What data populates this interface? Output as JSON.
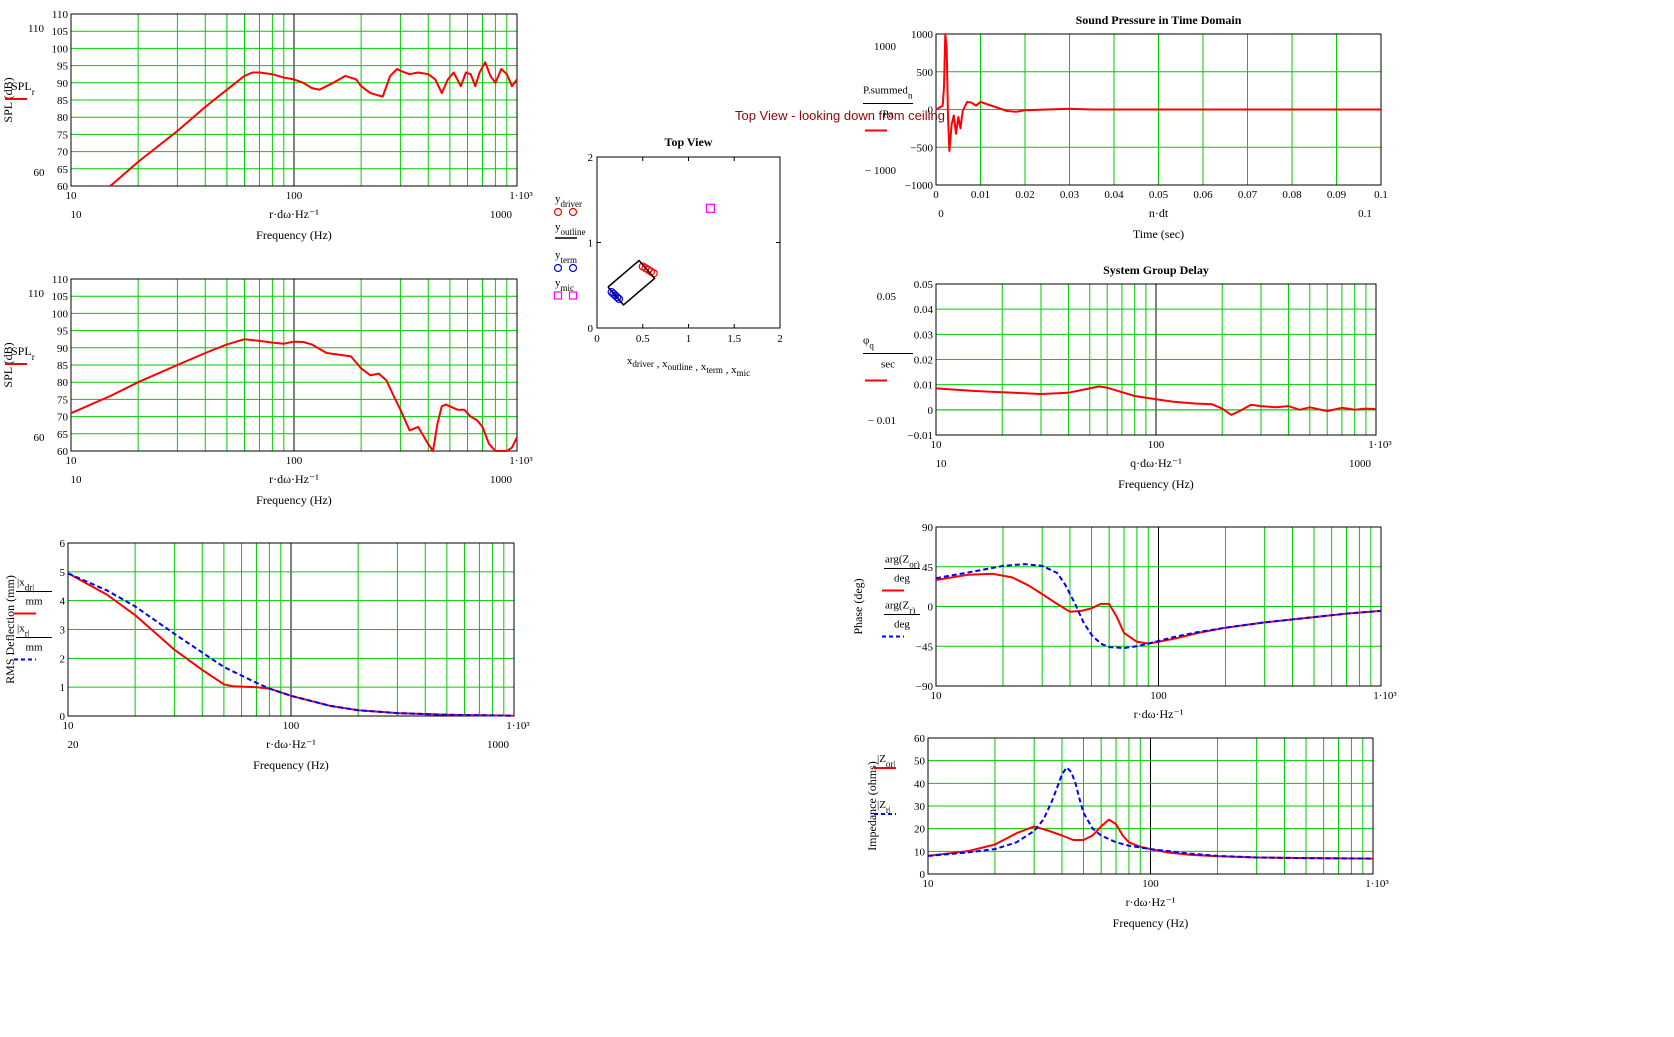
{
  "colors": {
    "grid": "#00cc00",
    "red": "#ff0000",
    "blue": "#0000ff",
    "magenta": "#ff00ff",
    "black": "#000000",
    "note": "#990000"
  },
  "note_text": "Top View - looking down from ceiling",
  "chart_data": [
    {
      "id": "spl1",
      "type": "line",
      "xscale": "log",
      "xlim": [
        10,
        1000
      ],
      "ylim": [
        60,
        110
      ],
      "xticks": [
        "10",
        "100",
        "1·10³"
      ],
      "xmarkers": [
        "10",
        "1000"
      ],
      "yticks": [
        "60",
        "65",
        "70",
        "75",
        "80",
        "85",
        "90",
        "95",
        "100",
        "105",
        "110"
      ],
      "ymarkers": [
        "60",
        "110"
      ],
      "ylabel": "SPL (dB)",
      "trace_label": "SPL_r",
      "xexpr": "r·dω·Hz⁻¹",
      "xlabel": "Frequency (Hz)",
      "series": [
        {
          "name": "SPL_r",
          "color": "red",
          "dash": false,
          "x": [
            15,
            20,
            30,
            40,
            50,
            60,
            65,
            70,
            80,
            90,
            100,
            110,
            120,
            130,
            150,
            170,
            190,
            200,
            220,
            250,
            270,
            290,
            300,
            330,
            360,
            400,
            430,
            460,
            490,
            520,
            560,
            590,
            620,
            650,
            680,
            720,
            760,
            800,
            850,
            900,
            950,
            1000
          ],
          "y": [
            60,
            67,
            76,
            83,
            88,
            92,
            93,
            93,
            92.5,
            91.5,
            91,
            90,
            88.5,
            88,
            90,
            92,
            91,
            89,
            87,
            86,
            92,
            94,
            93.5,
            92.5,
            93,
            92.5,
            91,
            87,
            91,
            93,
            89,
            93,
            92.5,
            89,
            93,
            96,
            92,
            90,
            94,
            92.5,
            89,
            91
          ]
        }
      ]
    },
    {
      "id": "spl2",
      "type": "line",
      "xscale": "log",
      "xlim": [
        10,
        1000
      ],
      "ylim": [
        60,
        110
      ],
      "xticks": [
        "10",
        "100",
        "1·10³"
      ],
      "xmarkers": [
        "10",
        "1000"
      ],
      "yticks": [
        "60",
        "65",
        "70",
        "75",
        "80",
        "85",
        "90",
        "95",
        "100",
        "105",
        "110"
      ],
      "ymarkers": [
        "60",
        "110"
      ],
      "ylabel": "SPL (dB)",
      "trace_label": "SPL_r",
      "xexpr": "r·dω·Hz⁻¹",
      "xlabel": "Frequency (Hz)",
      "series": [
        {
          "name": "SPL_r",
          "color": "red",
          "dash": false,
          "x": [
            10,
            15,
            20,
            30,
            40,
            50,
            60,
            70,
            80,
            90,
            100,
            110,
            120,
            140,
            160,
            180,
            200,
            220,
            240,
            260,
            280,
            300,
            330,
            360,
            400,
            420,
            440,
            460,
            480,
            500,
            540,
            580,
            620,
            660,
            700,
            750,
            800,
            850,
            900,
            950,
            1000
          ],
          "y": [
            71,
            76,
            80,
            85,
            88.5,
            91,
            92.5,
            92,
            91.5,
            91.2,
            91.8,
            91.7,
            91,
            88.5,
            88,
            87.5,
            84,
            82,
            82.5,
            80.5,
            76,
            72,
            66,
            67,
            62,
            60,
            68,
            73,
            73.5,
            73,
            72,
            72,
            70,
            69,
            67,
            62,
            60,
            58,
            58,
            61,
            64
          ]
        }
      ]
    },
    {
      "id": "defl",
      "type": "line",
      "xscale": "log",
      "xlim": [
        10,
        1000
      ],
      "ylim": [
        0,
        6
      ],
      "xticks": [
        "10",
        "100",
        "1·10³"
      ],
      "xmarkers": [
        "20",
        "1000"
      ],
      "yticks": [
        "0",
        "1",
        "2",
        "3",
        "4",
        "5",
        "6"
      ],
      "ymarkers": [],
      "ylabel": "RMS Deflection (mm)",
      "trace_labels": [
        {
          "num": "|x_d_r|",
          "den": "mm"
        },
        {
          "num": "|x_r|",
          "den": "mm"
        }
      ],
      "xexpr": "r·dω·Hz⁻¹",
      "xlabel": "Frequency (Hz)",
      "series": [
        {
          "name": "|x_d_r| / mm",
          "color": "red",
          "dash": false,
          "x": [
            10,
            15,
            20,
            30,
            40,
            50,
            55,
            60,
            70,
            80,
            100,
            150,
            200,
            300,
            500,
            1000
          ],
          "y": [
            4.95,
            4.2,
            3.5,
            2.3,
            1.6,
            1.1,
            1.03,
            1.02,
            1.0,
            0.95,
            0.7,
            0.35,
            0.2,
            0.1,
            0.04,
            0.01
          ]
        },
        {
          "name": "|x_r| / mm",
          "color": "blue",
          "dash": true,
          "x": [
            10,
            15,
            20,
            30,
            40,
            50,
            60,
            70,
            80,
            100,
            150,
            200,
            300,
            500,
            1000
          ],
          "y": [
            4.95,
            4.35,
            3.8,
            2.85,
            2.2,
            1.7,
            1.4,
            1.15,
            0.95,
            0.7,
            0.35,
            0.2,
            0.1,
            0.04,
            0.01
          ]
        }
      ]
    },
    {
      "id": "pressure",
      "type": "line",
      "xscale": "linear",
      "title": "Sound Pressure in Time Domain",
      "xlim": [
        0,
        0.1
      ],
      "ylim": [
        -1000,
        1000
      ],
      "xticks": [
        "0",
        "0.01",
        "0.02",
        "0.03",
        "0.04",
        "0.05",
        "0.06",
        "0.07",
        "0.08",
        "0.09",
        "0.1"
      ],
      "xmarkers": [
        "0",
        "0.1"
      ],
      "yticks": [
        "−1000",
        "−500",
        "0",
        "500",
        "1000"
      ],
      "ymarkers": [
        "1000",
        "− 1000"
      ],
      "trace_label": {
        "num": "P.summed_n",
        "den": "Pa"
      },
      "xexpr": "n·dt",
      "xlabel": "Time (sec)",
      "series": [
        {
          "name": "P.summed_n / Pa",
          "color": "red",
          "dash": false,
          "x": [
            0,
            0.0015,
            0.0018,
            0.0021,
            0.0024,
            0.0027,
            0.003,
            0.0035,
            0.004,
            0.0045,
            0.005,
            0.0055,
            0.006,
            0.007,
            0.008,
            0.009,
            0.01,
            0.012,
            0.014,
            0.016,
            0.018,
            0.02,
            0.025,
            0.03,
            0.035,
            0.04,
            0.1
          ],
          "y": [
            0,
            50,
            300,
            1000,
            800,
            -100,
            -550,
            -200,
            -80,
            -320,
            -100,
            -250,
            -20,
            100,
            90,
            50,
            100,
            60,
            20,
            -20,
            -30,
            -10,
            0,
            10,
            0,
            0,
            0
          ]
        }
      ]
    },
    {
      "id": "groupdelay",
      "type": "line",
      "xscale": "log",
      "title": "System Group Delay",
      "xlim": [
        10,
        1000
      ],
      "ylim": [
        -0.01,
        0.05
      ],
      "xticks": [
        "10",
        "100",
        "1·10³"
      ],
      "xmarkers": [
        "10",
        "1000"
      ],
      "yticks": [
        "−0.01",
        "0",
        "0.01",
        "0.02",
        "0.03",
        "0.04",
        "0.05"
      ],
      "ymarkers": [
        "0.05",
        "− 0.01"
      ],
      "trace_label": {
        "num": "φ_q",
        "den": "sec"
      },
      "xexpr": "q·dω·Hz⁻¹",
      "xlabel": "Frequency (Hz)",
      "series": [
        {
          "name": "φ_q / sec",
          "color": "red",
          "dash": false,
          "x": [
            10,
            15,
            20,
            30,
            40,
            50,
            55,
            60,
            70,
            80,
            100,
            120,
            150,
            180,
            200,
            220,
            240,
            270,
            300,
            350,
            400,
            450,
            500,
            600,
            700,
            800,
            900,
            1000
          ],
          "y": [
            0.0085,
            0.0075,
            0.007,
            0.0063,
            0.0068,
            0.0085,
            0.0093,
            0.0088,
            0.007,
            0.0055,
            0.0042,
            0.0032,
            0.0025,
            0.0022,
            0.0005,
            -0.002,
            -0.0005,
            0.002,
            0.0015,
            0.001,
            0.0015,
            0.0,
            0.001,
            -0.0005,
            0.0008,
            0.0,
            0.0005,
            0.0003
          ]
        }
      ]
    },
    {
      "id": "phase",
      "type": "line",
      "xscale": "log",
      "xlim": [
        10,
        1000
      ],
      "ylim": [
        -90,
        90
      ],
      "xticks": [
        "10",
        "100",
        "1·10³"
      ],
      "xmarkers": [],
      "yticks": [
        "−90",
        "−45",
        "0",
        "45",
        "90"
      ],
      "ymarkers": [],
      "ylabel": "Phase (deg)",
      "trace_labels": [
        {
          "num": "arg(Z_o_r)",
          "den": "deg"
        },
        {
          "num": "arg(Z_r)",
          "den": "deg"
        }
      ],
      "xexpr": "r·dω·Hz⁻¹",
      "xlabel": "",
      "series": [
        {
          "name": "arg(Z_o_r) / deg",
          "color": "red",
          "dash": false,
          "x": [
            10,
            14,
            18,
            22,
            26,
            30,
            35,
            40,
            45,
            50,
            55,
            60,
            65,
            70,
            80,
            90,
            100,
            120,
            150,
            200,
            300,
            500,
            700,
            1000
          ],
          "y": [
            30,
            36,
            37,
            33,
            24,
            14,
            3,
            -6,
            -5,
            -2,
            3,
            3,
            -12,
            -30,
            -40,
            -42,
            -40,
            -36,
            -30,
            -24,
            -18,
            -12,
            -8,
            -5
          ]
        },
        {
          "name": "arg(Z_r) / deg",
          "color": "blue",
          "dash": true,
          "x": [
            10,
            15,
            20,
            25,
            30,
            35,
            38,
            42,
            46,
            50,
            55,
            60,
            70,
            80,
            90,
            100,
            120,
            150,
            200,
            300,
            500,
            700,
            1000
          ],
          "y": [
            32,
            40,
            46,
            48,
            46,
            38,
            25,
            4,
            -18,
            -32,
            -42,
            -46,
            -47,
            -45,
            -42,
            -39,
            -34,
            -29,
            -24,
            -18,
            -12,
            -8,
            -5
          ]
        }
      ]
    },
    {
      "id": "impedance",
      "type": "line",
      "xscale": "log",
      "xlim": [
        10,
        1000
      ],
      "ylim": [
        0,
        60
      ],
      "xticks": [
        "10",
        "100",
        "1·10³"
      ],
      "xmarkers": [],
      "yticks": [
        "0",
        "10",
        "20",
        "30",
        "40",
        "50",
        "60"
      ],
      "ymarkers": [],
      "ylabel": "Impedance (ohms)",
      "trace_labels": [
        {
          "num": "|Z_o_r|",
          "den": ""
        },
        {
          "num": "|Z_r|",
          "den": ""
        }
      ],
      "xexpr": "r·dω·Hz⁻¹",
      "xlabel": "Frequency (Hz)",
      "series": [
        {
          "name": "|Z_o_r|",
          "color": "red",
          "dash": false,
          "x": [
            10,
            15,
            20,
            25,
            30,
            35,
            40,
            45,
            50,
            55,
            60,
            65,
            70,
            75,
            80,
            90,
            100,
            120,
            150,
            200,
            300,
            500,
            1000
          ],
          "y": [
            8,
            10,
            13,
            18,
            21,
            19,
            17,
            15,
            15,
            17,
            21,
            24,
            22,
            17,
            14,
            12,
            11,
            9.5,
            8.5,
            7.8,
            7.3,
            7,
            6.8
          ]
        },
        {
          "name": "|Z_r|",
          "color": "blue",
          "dash": true,
          "x": [
            10,
            15,
            20,
            25,
            30,
            33,
            36,
            38,
            40,
            42,
            44,
            46,
            48,
            50,
            55,
            60,
            70,
            80,
            100,
            150,
            200,
            300,
            500,
            1000
          ],
          "y": [
            8,
            9.5,
            11,
            14,
            19,
            24,
            32,
            38,
            44,
            47,
            45,
            40,
            33,
            27,
            20,
            17,
            14,
            12.5,
            11,
            9,
            8,
            7.3,
            7,
            6.8
          ]
        }
      ]
    },
    {
      "id": "topview",
      "type": "scatter",
      "title": "Top View",
      "xlim": [
        0,
        2
      ],
      "ylim": [
        0,
        2
      ],
      "xticks": [
        "0",
        "0.5",
        "1",
        "1.5",
        "2"
      ],
      "yticks": [
        "0",
        "1",
        "2"
      ],
      "xlabel": "x_driver , x_outline , x_term , x_mic",
      "legend": [
        "y_driver",
        "y_outline",
        "y_term",
        "y_mic"
      ],
      "series": [
        {
          "name": "driver",
          "marker": "circle",
          "color": "red",
          "x": [
            0.5,
            0.53,
            0.56,
            0.59,
            0.62
          ],
          "y": [
            0.72,
            0.7,
            0.68,
            0.66,
            0.64
          ]
        },
        {
          "name": "term",
          "marker": "circle",
          "color": "blue",
          "x": [
            0.16,
            0.18,
            0.2,
            0.22,
            0.24
          ],
          "y": [
            0.42,
            0.4,
            0.38,
            0.36,
            0.34
          ]
        },
        {
          "name": "mic",
          "marker": "square",
          "color": "magenta",
          "x": [
            1.24
          ],
          "y": [
            1.4
          ]
        },
        {
          "name": "outline",
          "marker": "line",
          "color": "black",
          "x": [
            0.12,
            0.46,
            0.63,
            0.29,
            0.12
          ],
          "y": [
            0.48,
            0.79,
            0.58,
            0.27,
            0.48
          ]
        }
      ]
    }
  ]
}
